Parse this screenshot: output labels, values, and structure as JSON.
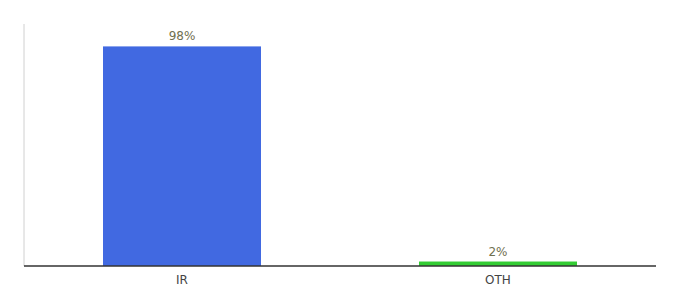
{
  "chart_data": {
    "type": "bar",
    "categories": [
      "IR",
      "OTH"
    ],
    "values": [
      98,
      2
    ],
    "value_labels": [
      "98%",
      "2%"
    ],
    "colors": [
      "#4169e1",
      "#33cc33"
    ],
    "ylim": [
      0,
      108
    ],
    "data_labels": true,
    "tick_labels": "x",
    "grid": false
  }
}
